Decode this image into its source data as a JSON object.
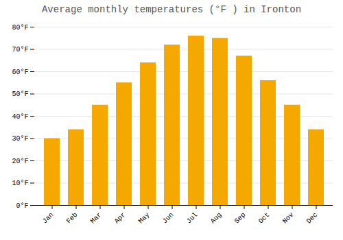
{
  "chart_data": {
    "type": "bar",
    "title": "Average monthly temperatures (°F ) in Ironton",
    "categories": [
      "Jan",
      "Feb",
      "Mar",
      "Apr",
      "May",
      "Jun",
      "Jul",
      "Aug",
      "Sep",
      "Oct",
      "Nov",
      "Dec"
    ],
    "values": [
      30,
      34,
      45,
      55,
      64,
      72,
      76,
      75,
      67,
      56,
      45,
      34
    ],
    "color": "#F5A800",
    "ylim": [
      0,
      80
    ],
    "yticks": [
      {
        "value": 0,
        "label": "0°F"
      },
      {
        "value": 10,
        "label": "10°F"
      },
      {
        "value": 20,
        "label": "20°F"
      },
      {
        "value": 30,
        "label": "30°F"
      },
      {
        "value": 40,
        "label": "40°F"
      },
      {
        "value": 50,
        "label": "50°F"
      },
      {
        "value": 60,
        "label": "60°F"
      },
      {
        "value": 70,
        "label": "70°F"
      },
      {
        "value": 80,
        "label": "80°F"
      }
    ],
    "grid": true
  }
}
